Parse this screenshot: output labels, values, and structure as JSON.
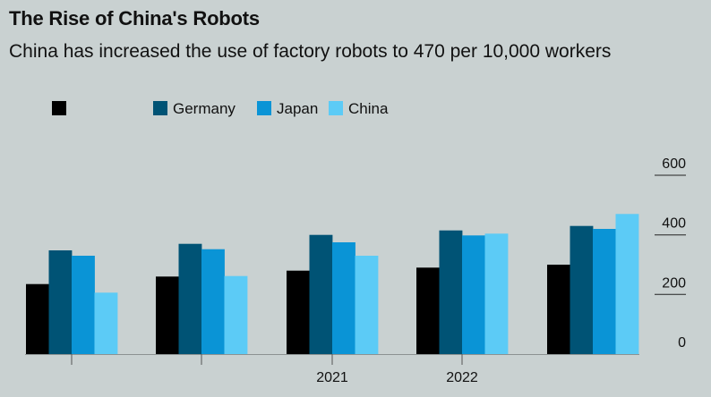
{
  "chart_data": {
    "type": "bar",
    "title": "The Rise of China's Robots",
    "subtitle": "China has increased the use of factory robots to 470 per 10,000 workers",
    "categories": [
      "",
      "",
      "2021",
      "2022",
      ""
    ],
    "series": [
      {
        "name": "",
        "color": "#000000",
        "values": [
          235,
          260,
          280,
          290,
          300
        ]
      },
      {
        "name": "Germany",
        "color": "#005375",
        "values": [
          348,
          370,
          400,
          415,
          430
        ]
      },
      {
        "name": "Japan",
        "color": "#0a94d6",
        "values": [
          330,
          352,
          375,
          398,
          420
        ]
      },
      {
        "name": "China",
        "color": "#5ccbf6",
        "values": [
          206,
          262,
          330,
          404,
          470
        ]
      }
    ],
    "yticks": [
      "600",
      "400",
      "200",
      "0"
    ],
    "ylim": [
      0,
      600
    ],
    "legend_position": "top-left",
    "grid": false
  }
}
